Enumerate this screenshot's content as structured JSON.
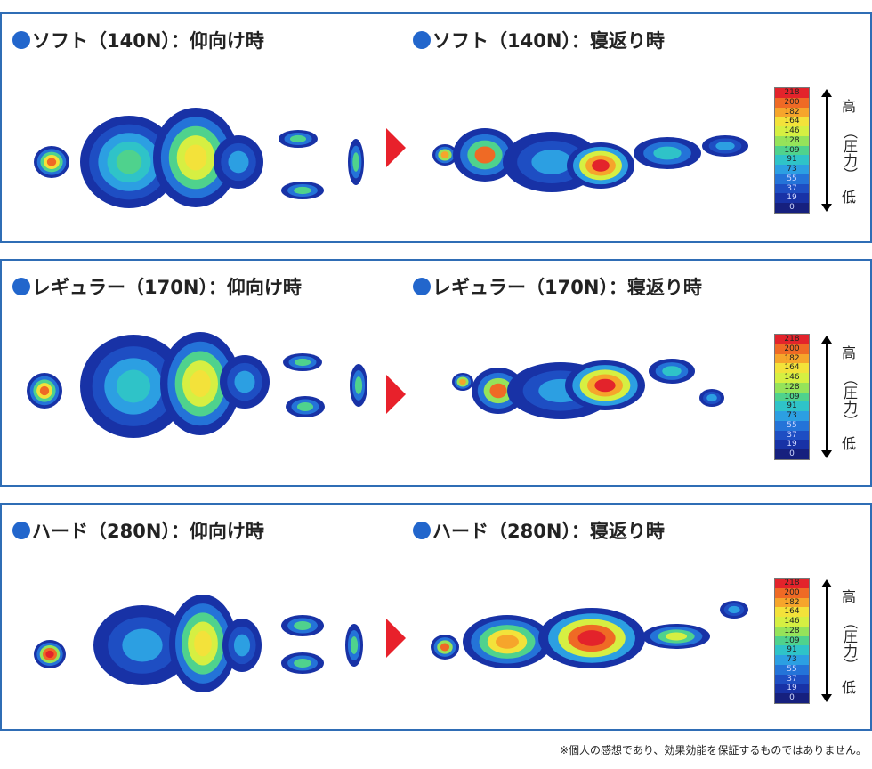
{
  "panels": [
    {
      "supine_title": "ソフト（140N）：仰向け時",
      "turn_title": "ソフト（140N）：寝返り時"
    },
    {
      "supine_title": "レギュラー（170N）：仰向け時",
      "turn_title": "レギュラー（170N）：寝返り時"
    },
    {
      "supine_title": "ハード（280N）：仰向け時",
      "turn_title": "ハード（280N）：寝返り時"
    }
  ],
  "scale": {
    "values": [
      "218",
      "200",
      "182",
      "164",
      "146",
      "128",
      "109",
      "91",
      "73",
      "55",
      "37",
      "19",
      "0"
    ],
    "colors": [
      "#e3232b",
      "#ef6a25",
      "#f6a52b",
      "#f3e23a",
      "#d6ef42",
      "#95e35a",
      "#4fd28d",
      "#2fc3c8",
      "#2c9fe2",
      "#2473d8",
      "#1e4ec3",
      "#1832a6",
      "#16207e"
    ],
    "high_label": "高",
    "middle_label": "（圧力）",
    "low_label": "低"
  },
  "footnote": "※個人の感想であり、効果効能を保証するものではありません。"
}
